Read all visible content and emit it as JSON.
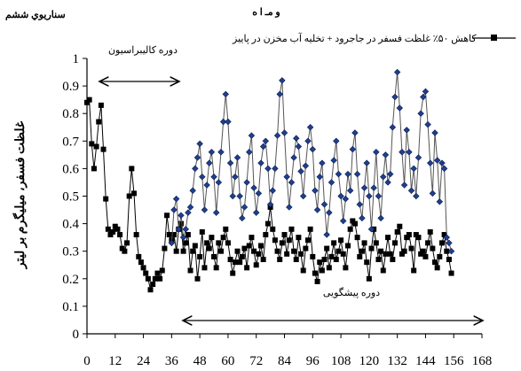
{
  "header": {
    "scenario": "سناريوي ششم",
    "top_fragment": "و       مـ ا ه"
  },
  "chart_data": {
    "type": "line",
    "title": "",
    "xlabel": "",
    "ylabel": "غلظت فسفر، ميلیگرم بر ليتر",
    "xlim": [
      0,
      168
    ],
    "ylim": [
      0,
      1
    ],
    "xticks": [
      0,
      12,
      24,
      36,
      48,
      60,
      72,
      84,
      96,
      108,
      120,
      132,
      144,
      156,
      168
    ],
    "yticks": [
      0,
      0.1,
      0.2,
      0.3,
      0.4,
      0.5,
      0.6,
      0.7,
      0.8,
      0.9,
      1
    ],
    "legend": {
      "label": "کاهش ۵۰٪ غلظت فسفر در جاجرود + تخليه آب مخزن در پاييز",
      "position": "top-right"
    },
    "annotations": {
      "calibration": "دوره کاليبراسيون",
      "prediction": "دوره پيشگويی"
    },
    "series": [
      {
        "name": "کاهش ۵۰٪ غلظت فسفر در جاجرود + تخليه آب مخزن در پاييز",
        "marker": "square",
        "color": "#000000",
        "x": [
          0,
          1,
          2,
          3,
          4,
          5,
          6,
          7,
          8,
          9,
          10,
          11,
          12,
          13,
          14,
          15,
          16,
          17,
          18,
          19,
          20,
          21,
          22,
          23,
          24,
          25,
          26,
          27,
          28,
          29,
          30,
          31,
          32,
          33,
          34,
          35,
          36,
          37,
          38,
          39,
          40,
          41,
          42,
          43,
          44,
          45,
          46,
          47,
          48,
          49,
          50,
          51,
          52,
          53,
          54,
          55,
          56,
          57,
          58,
          59,
          60,
          61,
          62,
          63,
          64,
          65,
          66,
          67,
          68,
          69,
          70,
          71,
          72,
          73,
          74,
          75,
          76,
          77,
          78,
          79,
          80,
          81,
          82,
          83,
          84,
          85,
          86,
          87,
          88,
          89,
          90,
          91,
          92,
          93,
          94,
          95,
          96,
          97,
          98,
          99,
          100,
          101,
          102,
          103,
          104,
          105,
          106,
          107,
          108,
          109,
          110,
          111,
          112,
          113,
          114,
          115,
          116,
          117,
          118,
          119,
          120,
          121,
          122,
          123,
          124,
          125,
          126,
          127,
          128,
          129,
          130,
          131,
          132,
          133,
          134,
          135,
          136,
          137,
          138,
          139,
          140,
          141,
          142,
          143,
          144,
          145,
          146,
          147,
          148,
          149,
          150,
          151,
          152,
          153,
          154,
          155
        ],
        "y": [
          0.84,
          0.85,
          0.69,
          0.6,
          0.68,
          0.77,
          0.83,
          0.67,
          0.49,
          0.38,
          0.36,
          0.37,
          0.39,
          0.38,
          0.36,
          0.31,
          0.3,
          0.33,
          0.5,
          0.6,
          0.51,
          0.36,
          0.28,
          0.26,
          0.24,
          0.22,
          0.2,
          0.16,
          0.18,
          0.2,
          0.22,
          0.2,
          0.23,
          0.31,
          0.43,
          0.36,
          0.34,
          0.36,
          0.3,
          0.38,
          0.4,
          0.3,
          0.33,
          0.36,
          0.23,
          0.3,
          0.32,
          0.2,
          0.28,
          0.37,
          0.24,
          0.33,
          0.31,
          0.35,
          0.28,
          0.24,
          0.33,
          0.3,
          0.35,
          0.38,
          0.33,
          0.27,
          0.22,
          0.26,
          0.3,
          0.26,
          0.28,
          0.31,
          0.24,
          0.32,
          0.35,
          0.3,
          0.25,
          0.29,
          0.32,
          0.27,
          0.36,
          0.4,
          0.46,
          0.38,
          0.34,
          0.3,
          0.27,
          0.33,
          0.36,
          0.29,
          0.34,
          0.38,
          0.3,
          0.27,
          0.35,
          0.29,
          0.23,
          0.31,
          0.34,
          0.38,
          0.28,
          0.22,
          0.19,
          0.26,
          0.23,
          0.27,
          0.31,
          0.24,
          0.28,
          0.33,
          0.27,
          0.3,
          0.34,
          0.29,
          0.24,
          0.32,
          0.38,
          0.41,
          0.4,
          0.35,
          0.28,
          0.3,
          0.33,
          0.26,
          0.2,
          0.31,
          0.38,
          0.33,
          0.27,
          0.3,
          0.23,
          0.29,
          0.35,
          0.29,
          0.27,
          0.33,
          0.37,
          0.39,
          0.29,
          0.3,
          0.35,
          0.36,
          0.31,
          0.23,
          0.36,
          0.35,
          0.29,
          0.3,
          0.28,
          0.33,
          0.37,
          0.31,
          0.26,
          0.24,
          0.28,
          0.33,
          0.36,
          0.3,
          0.27,
          0.22
        ]
      },
      {
        "name": "",
        "marker": "diamond",
        "color": "#1f3f8f",
        "x": [
          36,
          37,
          38,
          39,
          40,
          41,
          42,
          43,
          44,
          45,
          46,
          47,
          48,
          49,
          50,
          51,
          52,
          53,
          54,
          55,
          56,
          57,
          58,
          59,
          60,
          61,
          62,
          63,
          64,
          65,
          66,
          67,
          68,
          69,
          70,
          71,
          72,
          73,
          74,
          75,
          76,
          77,
          78,
          79,
          80,
          81,
          82,
          83,
          84,
          85,
          86,
          87,
          88,
          89,
          90,
          91,
          92,
          93,
          94,
          95,
          96,
          97,
          98,
          99,
          100,
          101,
          102,
          103,
          104,
          105,
          106,
          107,
          108,
          109,
          110,
          111,
          112,
          113,
          114,
          115,
          116,
          117,
          118,
          119,
          120,
          121,
          122,
          123,
          124,
          125,
          126,
          127,
          128,
          129,
          130,
          131,
          132,
          133,
          134,
          135,
          136,
          137,
          138,
          139,
          140,
          141,
          142,
          143,
          144,
          145,
          146,
          147,
          148,
          149,
          150,
          151,
          152,
          153,
          154,
          155
        ],
        "y": [
          0.33,
          0.45,
          0.49,
          0.38,
          0.43,
          0.35,
          0.38,
          0.44,
          0.46,
          0.52,
          0.6,
          0.64,
          0.69,
          0.57,
          0.45,
          0.54,
          0.62,
          0.66,
          0.57,
          0.44,
          0.55,
          0.66,
          0.77,
          0.87,
          0.77,
          0.62,
          0.5,
          0.57,
          0.64,
          0.5,
          0.42,
          0.46,
          0.55,
          0.66,
          0.72,
          0.53,
          0.44,
          0.51,
          0.62,
          0.68,
          0.7,
          0.6,
          0.47,
          0.52,
          0.6,
          0.72,
          0.87,
          0.92,
          0.73,
          0.57,
          0.46,
          0.55,
          0.64,
          0.71,
          0.68,
          0.59,
          0.5,
          0.61,
          0.7,
          0.75,
          0.67,
          0.52,
          0.45,
          0.57,
          0.62,
          0.47,
          0.36,
          0.44,
          0.55,
          0.63,
          0.7,
          0.58,
          0.5,
          0.41,
          0.49,
          0.58,
          0.52,
          0.67,
          0.73,
          0.58,
          0.47,
          0.42,
          0.53,
          0.62,
          0.5,
          0.38,
          0.53,
          0.66,
          0.5,
          0.42,
          0.57,
          0.65,
          0.55,
          0.58,
          0.75,
          0.86,
          0.95,
          0.82,
          0.66,
          0.54,
          0.74,
          0.66,
          0.52,
          0.6,
          0.5,
          0.64,
          0.8,
          0.86,
          0.88,
          0.76,
          0.62,
          0.51,
          0.73,
          0.63,
          0.48,
          0.62,
          0.6,
          0.35,
          0.33,
          0.3
        ]
      }
    ]
  }
}
